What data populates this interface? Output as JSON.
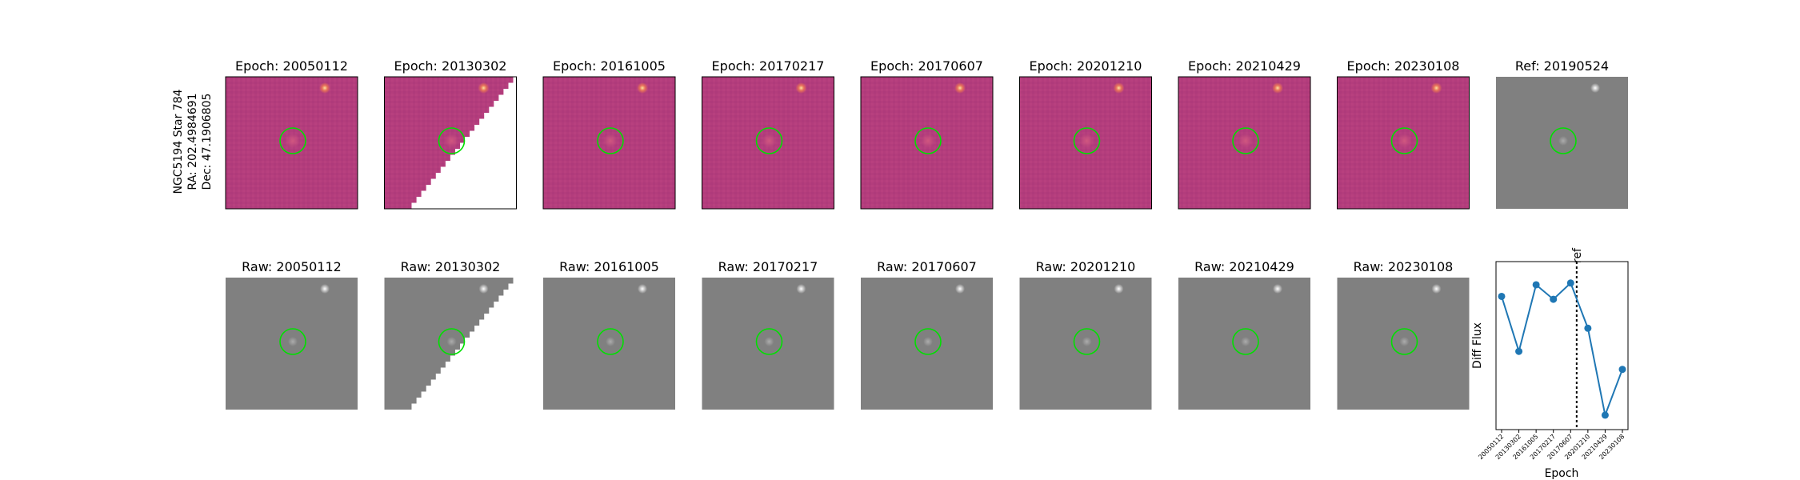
{
  "object": {
    "name": "NGC5194 Star 784",
    "ra_line": "RA: 202.4984691",
    "dec_line": "Dec: 47.1906805"
  },
  "epochs": [
    "20050112",
    "20130302",
    "20161005",
    "20170217",
    "20170607",
    "20201210",
    "20210429",
    "20230108"
  ],
  "diff_title_prefix": "Epoch: ",
  "raw_title_prefix": "Raw: ",
  "reference": {
    "title": "Ref: 20190524",
    "epoch": "20190524"
  },
  "colors": {
    "diff_background": "#b33d7c",
    "raw_background": "#808080",
    "aperture": "#00e000",
    "series": "#1f77b4",
    "ref_line": "#000000"
  },
  "chart_data": {
    "type": "line",
    "x": [
      "20050112",
      "20130302",
      "20161005",
      "20170217",
      "20170607",
      "20201210",
      "20210429",
      "20230108"
    ],
    "series": [
      {
        "values": [
          0.7,
          -0.25,
          0.9,
          0.65,
          0.93,
          0.15,
          -1.35,
          -0.56
        ]
      }
    ],
    "xlabel": "Epoch",
    "ylabel": "Diff Flux",
    "ylim": [
      -1.6,
      1.3
    ],
    "ref_marker": {
      "label": "ref",
      "position_between": [
        "20170607",
        "20201210"
      ]
    },
    "grid": false
  }
}
